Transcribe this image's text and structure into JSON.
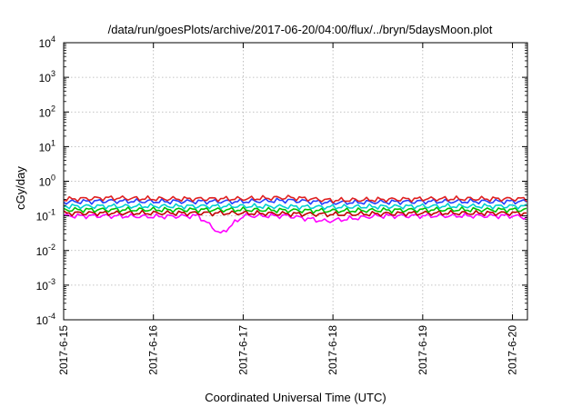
{
  "chart_data": {
    "type": "line",
    "title": "/data/run/goesPlots/archive/2017-06-20/04:00/flux/../bryn/5daysMoon.plot",
    "xlabel": "Coordinated Universal Time (UTC)",
    "ylabel": "cGy/day",
    "y_scale": "log",
    "ylim": [
      0.0001,
      10000
    ],
    "y_ticks": [
      {
        "base": "10",
        "exp": "4"
      },
      {
        "base": "10",
        "exp": "3"
      },
      {
        "base": "10",
        "exp": "2"
      },
      {
        "base": "10",
        "exp": "1"
      },
      {
        "base": "10",
        "exp": "0"
      },
      {
        "base": "10",
        "exp": "-1"
      },
      {
        "base": "10",
        "exp": "-2"
      },
      {
        "base": "10",
        "exp": "-3"
      },
      {
        "base": "10",
        "exp": "-4"
      }
    ],
    "xlim": [
      "2017-06-15 00:00",
      "2017-06-20 04:00"
    ],
    "x_ticks": [
      "2017-6-15",
      "2017-6-16",
      "2017-6-17",
      "2017-6-18",
      "2017-6-19",
      "2017-6-20"
    ],
    "grid": true,
    "legend": "none",
    "series_colors": [
      "#ff00ff",
      "#c00000",
      "#00c000",
      "#00d0d0",
      "#2040ff",
      "#e02020"
    ],
    "series": [
      {
        "color": "#ff00ff",
        "x": [
          "2017-06-15 00:00",
          "2017-06-15 12:00",
          "2017-06-16 00:00",
          "2017-06-16 12:00",
          "2017-06-16 18:00",
          "2017-06-17 00:00",
          "2017-06-17 12:00",
          "2017-06-17 22:00",
          "2017-06-18 12:00",
          "2017-06-19 00:00",
          "2017-06-19 12:00",
          "2017-06-20 00:00",
          "2017-06-20 04:00"
        ],
        "y": [
          0.1,
          0.1,
          0.095,
          0.1,
          0.03,
          0.1,
          0.1,
          0.07,
          0.1,
          0.1,
          0.1,
          0.1,
          0.09
        ]
      },
      {
        "color": "#c00000",
        "x": [
          "2017-06-15 00:00",
          "2017-06-16 00:00",
          "2017-06-17 00:00",
          "2017-06-18 00:00",
          "2017-06-19 00:00",
          "2017-06-20 00:00",
          "2017-06-20 04:00"
        ],
        "y": [
          0.12,
          0.12,
          0.12,
          0.11,
          0.12,
          0.12,
          0.12
        ]
      },
      {
        "color": "#00c000",
        "x": [
          "2017-06-15 00:00",
          "2017-06-16 00:00",
          "2017-06-17 00:00",
          "2017-06-18 00:00",
          "2017-06-19 00:00",
          "2017-06-20 00:00",
          "2017-06-20 04:00"
        ],
        "y": [
          0.15,
          0.15,
          0.15,
          0.14,
          0.15,
          0.15,
          0.15
        ]
      },
      {
        "color": "#00d0d0",
        "x": [
          "2017-06-15 00:00",
          "2017-06-16 00:00",
          "2017-06-17 00:00",
          "2017-06-18 00:00",
          "2017-06-19 00:00",
          "2017-06-20 00:00",
          "2017-06-20 04:00"
        ],
        "y": [
          0.19,
          0.19,
          0.19,
          0.18,
          0.19,
          0.19,
          0.19
        ]
      },
      {
        "color": "#2040ff",
        "x": [
          "2017-06-15 00:00",
          "2017-06-15 12:00",
          "2017-06-16 00:00",
          "2017-06-17 00:00",
          "2017-06-17 12:00",
          "2017-06-18 00:00",
          "2017-06-19 00:00",
          "2017-06-20 00:00",
          "2017-06-20 04:00"
        ],
        "y": [
          0.25,
          0.27,
          0.26,
          0.26,
          0.28,
          0.24,
          0.26,
          0.26,
          0.26
        ]
      },
      {
        "color": "#e02020",
        "x": [
          "2017-06-15 00:00",
          "2017-06-15 12:00",
          "2017-06-16 00:00",
          "2017-06-17 00:00",
          "2017-06-17 12:00",
          "2017-06-18 00:00",
          "2017-06-19 00:00",
          "2017-06-20 00:00",
          "2017-06-20 04:00"
        ],
        "y": [
          0.3,
          0.33,
          0.31,
          0.31,
          0.34,
          0.28,
          0.31,
          0.31,
          0.31
        ]
      }
    ]
  }
}
